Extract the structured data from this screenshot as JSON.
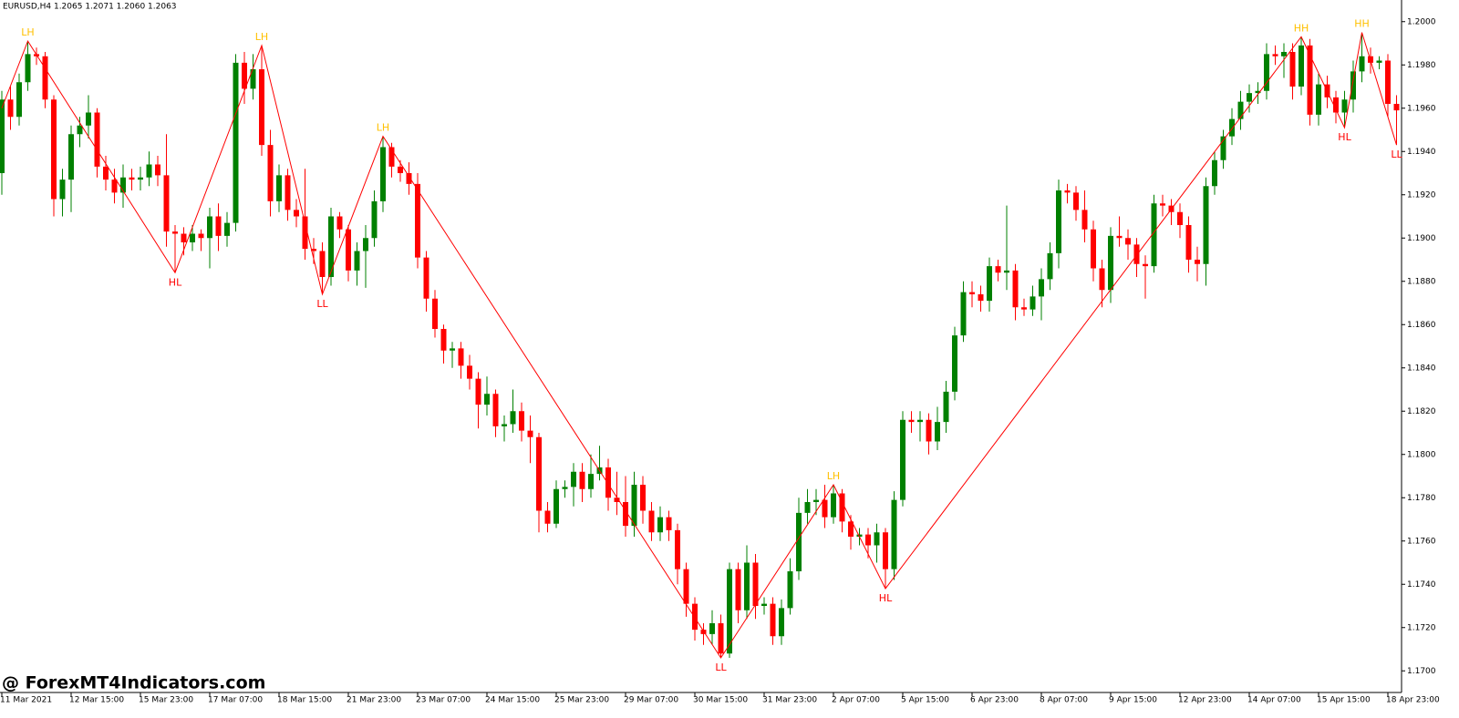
{
  "chart_data": {
    "type": "candlestick",
    "title": "EURUSD,H4  1.2065 1.2071 1.2060 1.2063",
    "watermark": "@ ForexMT4Indicators.com",
    "up_color": "#008000",
    "down_color": "#ff0000",
    "zigzag_color": "#ff0000",
    "high_label_color": "#ffc000",
    "low_label_color": "#ff0000",
    "ylim": [
      1.169,
      1.201
    ],
    "yticks": [
      {
        "value": 1.17,
        "label": "1.1700"
      },
      {
        "value": 1.172,
        "label": "1.1720"
      },
      {
        "value": 1.174,
        "label": "1.1740"
      },
      {
        "value": 1.176,
        "label": "1.1760"
      },
      {
        "value": 1.178,
        "label": "1.1780"
      },
      {
        "value": 1.18,
        "label": "1.1800"
      },
      {
        "value": 1.182,
        "label": "1.1820"
      },
      {
        "value": 1.184,
        "label": "1.1840"
      },
      {
        "value": 1.186,
        "label": "1.1860"
      },
      {
        "value": 1.188,
        "label": "1.1880"
      },
      {
        "value": 1.19,
        "label": "1.1900"
      },
      {
        "value": 1.192,
        "label": "1.1920"
      },
      {
        "value": 1.194,
        "label": "1.1940"
      },
      {
        "value": 1.196,
        "label": "1.1960"
      },
      {
        "value": 1.198,
        "label": "1.1980"
      },
      {
        "value": 1.2,
        "label": "1.2000"
      }
    ],
    "xticks": [
      {
        "value": 0,
        "label": "11 Mar 2021"
      },
      {
        "value": 8,
        "label": "12 Mar 15:00"
      },
      {
        "value": 16,
        "label": "15 Mar 23:00"
      },
      {
        "value": 24,
        "label": "17 Mar 07:00"
      },
      {
        "value": 32,
        "label": "18 Mar 15:00"
      },
      {
        "value": 40,
        "label": "21 Mar 23:00"
      },
      {
        "value": 48,
        "label": "23 Mar 07:00"
      },
      {
        "value": 56,
        "label": "24 Mar 15:00"
      },
      {
        "value": 64,
        "label": "25 Mar 23:00"
      },
      {
        "value": 72,
        "label": "29 Mar 07:00"
      },
      {
        "value": 80,
        "label": "30 Mar 15:00"
      },
      {
        "value": 88,
        "label": "31 Mar 23:00"
      },
      {
        "value": 96,
        "label": "2 Apr 07:00"
      },
      {
        "value": 104,
        "label": "5 Apr 15:00"
      },
      {
        "value": 112,
        "label": "6 Apr 23:00"
      },
      {
        "value": 120,
        "label": "8 Apr 07:00"
      },
      {
        "value": 128,
        "label": "9 Apr 15:00"
      },
      {
        "value": 136,
        "label": "12 Apr 23:00"
      },
      {
        "value": 144,
        "label": "14 Apr 07:00"
      },
      {
        "value": 152,
        "label": "15 Apr 15:00"
      },
      {
        "value": 160,
        "label": "18 Apr 23:00"
      }
    ],
    "candles": [
      [
        1.193,
        1.1968,
        1.192,
        1.1964
      ],
      [
        1.1964,
        1.197,
        1.195,
        1.1956
      ],
      [
        1.1956,
        1.1976,
        1.1952,
        1.1972
      ],
      [
        1.1972,
        1.1991,
        1.1968,
        1.1985
      ],
      [
        1.1985,
        1.1988,
        1.198,
        1.1984
      ],
      [
        1.1984,
        1.1986,
        1.196,
        1.1964
      ],
      [
        1.1964,
        1.1966,
        1.191,
        1.1918
      ],
      [
        1.1918,
        1.1932,
        1.191,
        1.1927
      ],
      [
        1.1927,
        1.1952,
        1.1912,
        1.1948
      ],
      [
        1.1948,
        1.1956,
        1.1942,
        1.1952
      ],
      [
        1.1952,
        1.1966,
        1.1946,
        1.1958
      ],
      [
        1.1958,
        1.196,
        1.1928,
        1.1933
      ],
      [
        1.1933,
        1.1938,
        1.1922,
        1.1927
      ],
      [
        1.1927,
        1.1932,
        1.1916,
        1.1921
      ],
      [
        1.1921,
        1.1934,
        1.1914,
        1.1928
      ],
      [
        1.1928,
        1.1932,
        1.1922,
        1.1927
      ],
      [
        1.1927,
        1.1933,
        1.1922,
        1.1928
      ],
      [
        1.1928,
        1.194,
        1.1924,
        1.1934
      ],
      [
        1.1934,
        1.1938,
        1.1924,
        1.1929
      ],
      [
        1.1929,
        1.1948,
        1.1896,
        1.1903
      ],
      [
        1.1903,
        1.1906,
        1.1884,
        1.1902
      ],
      [
        1.1902,
        1.1905,
        1.1892,
        1.1898
      ],
      [
        1.1898,
        1.1906,
        1.1894,
        1.1902
      ],
      [
        1.1902,
        1.1904,
        1.1894,
        1.19
      ],
      [
        1.19,
        1.1914,
        1.1886,
        1.191
      ],
      [
        1.191,
        1.1916,
        1.1894,
        1.1901
      ],
      [
        1.1901,
        1.1912,
        1.1896,
        1.1907
      ],
      [
        1.1907,
        1.1985,
        1.1903,
        1.1981
      ],
      [
        1.1981,
        1.1986,
        1.1962,
        1.1969
      ],
      [
        1.1969,
        1.1985,
        1.1964,
        1.1978
      ],
      [
        1.1978,
        1.1989,
        1.1938,
        1.1943
      ],
      [
        1.1943,
        1.195,
        1.191,
        1.1917
      ],
      [
        1.1917,
        1.1934,
        1.1912,
        1.1929
      ],
      [
        1.1929,
        1.1932,
        1.1908,
        1.1913
      ],
      [
        1.1913,
        1.1918,
        1.1905,
        1.191
      ],
      [
        1.191,
        1.1932,
        1.189,
        1.1895
      ],
      [
        1.1895,
        1.19,
        1.1888,
        1.1894
      ],
      [
        1.1894,
        1.1898,
        1.1874,
        1.1882
      ],
      [
        1.1882,
        1.1914,
        1.1878,
        1.191
      ],
      [
        1.191,
        1.1912,
        1.19,
        1.1904
      ],
      [
        1.1904,
        1.1906,
        1.188,
        1.1885
      ],
      [
        1.1885,
        1.1898,
        1.1878,
        1.1894
      ],
      [
        1.1894,
        1.1906,
        1.1877,
        1.19
      ],
      [
        1.19,
        1.1922,
        1.1896,
        1.1917
      ],
      [
        1.1917,
        1.1947,
        1.1912,
        1.1942
      ],
      [
        1.1942,
        1.1944,
        1.1928,
        1.1933
      ],
      [
        1.1933,
        1.1936,
        1.1926,
        1.193
      ],
      [
        1.193,
        1.1935,
        1.192,
        1.1925
      ],
      [
        1.1925,
        1.193,
        1.1886,
        1.1891
      ],
      [
        1.1891,
        1.1894,
        1.1866,
        1.1872
      ],
      [
        1.1872,
        1.1876,
        1.1854,
        1.1858
      ],
      [
        1.1858,
        1.186,
        1.1842,
        1.1848
      ],
      [
        1.1848,
        1.1852,
        1.184,
        1.1849
      ],
      [
        1.1849,
        1.1852,
        1.1835,
        1.1841
      ],
      [
        1.1841,
        1.1846,
        1.183,
        1.1835
      ],
      [
        1.1835,
        1.1838,
        1.1812,
        1.1823
      ],
      [
        1.1823,
        1.1836,
        1.1818,
        1.1828
      ],
      [
        1.1828,
        1.183,
        1.1808,
        1.1813
      ],
      [
        1.1813,
        1.1818,
        1.1806,
        1.1814
      ],
      [
        1.1814,
        1.183,
        1.181,
        1.182
      ],
      [
        1.182,
        1.1824,
        1.1806,
        1.1811
      ],
      [
        1.1811,
        1.1818,
        1.1796,
        1.1808
      ],
      [
        1.1808,
        1.181,
        1.1764,
        1.1774
      ],
      [
        1.1774,
        1.1778,
        1.1764,
        1.1768
      ],
      [
        1.1768,
        1.1788,
        1.1766,
        1.1784
      ],
      [
        1.1784,
        1.1788,
        1.178,
        1.1785
      ],
      [
        1.1785,
        1.1796,
        1.1776,
        1.1792
      ],
      [
        1.1792,
        1.1796,
        1.1778,
        1.1784
      ],
      [
        1.1784,
        1.18,
        1.178,
        1.1791
      ],
      [
        1.1791,
        1.1804,
        1.1788,
        1.1794
      ],
      [
        1.1794,
        1.1798,
        1.1774,
        1.178
      ],
      [
        1.178,
        1.1792,
        1.1772,
        1.1778
      ],
      [
        1.1778,
        1.179,
        1.1762,
        1.1767
      ],
      [
        1.1767,
        1.1792,
        1.1762,
        1.1786
      ],
      [
        1.1786,
        1.179,
        1.1768,
        1.1774
      ],
      [
        1.1774,
        1.1778,
        1.176,
        1.1764
      ],
      [
        1.1764,
        1.1776,
        1.176,
        1.1771
      ],
      [
        1.1771,
        1.1774,
        1.176,
        1.1765
      ],
      [
        1.1765,
        1.1768,
        1.174,
        1.1747
      ],
      [
        1.1747,
        1.175,
        1.1725,
        1.1731
      ],
      [
        1.1731,
        1.1734,
        1.1714,
        1.1719
      ],
      [
        1.1719,
        1.1722,
        1.1712,
        1.1717
      ],
      [
        1.1717,
        1.1728,
        1.1712,
        1.1722
      ],
      [
        1.1722,
        1.1726,
        1.1706,
        1.1708
      ],
      [
        1.1708,
        1.175,
        1.1706,
        1.1747
      ],
      [
        1.1747,
        1.175,
        1.1722,
        1.1728
      ],
      [
        1.1728,
        1.1758,
        1.1724,
        1.175
      ],
      [
        1.175,
        1.1754,
        1.1724,
        1.173
      ],
      [
        1.173,
        1.1734,
        1.1726,
        1.1731
      ],
      [
        1.1731,
        1.1734,
        1.1712,
        1.1716
      ],
      [
        1.1716,
        1.1733,
        1.1712,
        1.1729
      ],
      [
        1.1729,
        1.1752,
        1.1726,
        1.1746
      ],
      [
        1.1746,
        1.178,
        1.1742,
        1.1773
      ],
      [
        1.1773,
        1.1784,
        1.1768,
        1.1778
      ],
      [
        1.1778,
        1.1784,
        1.1772,
        1.1779
      ],
      [
        1.1779,
        1.1786,
        1.1766,
        1.1771
      ],
      [
        1.1771,
        1.1786,
        1.1768,
        1.1782
      ],
      [
        1.1782,
        1.1784,
        1.1764,
        1.1769
      ],
      [
        1.1769,
        1.1772,
        1.1756,
        1.1762
      ],
      [
        1.1762,
        1.1766,
        1.1758,
        1.1763
      ],
      [
        1.1763,
        1.1766,
        1.1752,
        1.1758
      ],
      [
        1.1758,
        1.1768,
        1.175,
        1.1764
      ],
      [
        1.1764,
        1.1766,
        1.1738,
        1.1747
      ],
      [
        1.1747,
        1.1783,
        1.1742,
        1.1779
      ],
      [
        1.1779,
        1.182,
        1.1776,
        1.1816
      ],
      [
        1.1816,
        1.182,
        1.181,
        1.1815
      ],
      [
        1.1815,
        1.182,
        1.1806,
        1.1816
      ],
      [
        1.1816,
        1.1819,
        1.18,
        1.1806
      ],
      [
        1.1806,
        1.1822,
        1.1802,
        1.1815
      ],
      [
        1.1815,
        1.1834,
        1.181,
        1.1829
      ],
      [
        1.1829,
        1.1859,
        1.1825,
        1.1855
      ],
      [
        1.1855,
        1.188,
        1.1852,
        1.1875
      ],
      [
        1.1875,
        1.188,
        1.1868,
        1.1874
      ],
      [
        1.1874,
        1.1878,
        1.1866,
        1.1871
      ],
      [
        1.1871,
        1.1891,
        1.1866,
        1.1887
      ],
      [
        1.1887,
        1.189,
        1.188,
        1.1884
      ],
      [
        1.1884,
        1.1915,
        1.1876,
        1.1885
      ],
      [
        1.1885,
        1.1888,
        1.1862,
        1.1868
      ],
      [
        1.1868,
        1.1872,
        1.1864,
        1.1867
      ],
      [
        1.1867,
        1.1878,
        1.1864,
        1.1873
      ],
      [
        1.1873,
        1.1886,
        1.1862,
        1.1881
      ],
      [
        1.1881,
        1.1898,
        1.1876,
        1.1893
      ],
      [
        1.1893,
        1.1927,
        1.1886,
        1.1922
      ],
      [
        1.1922,
        1.1925,
        1.1916,
        1.1921
      ],
      [
        1.1921,
        1.1924,
        1.1908,
        1.1913
      ],
      [
        1.1913,
        1.1922,
        1.1898,
        1.1904
      ],
      [
        1.1904,
        1.1908,
        1.188,
        1.1886
      ],
      [
        1.1886,
        1.189,
        1.1868,
        1.1876
      ],
      [
        1.1876,
        1.1905,
        1.187,
        1.1901
      ],
      [
        1.1901,
        1.191,
        1.1896,
        1.19
      ],
      [
        1.19,
        1.1904,
        1.189,
        1.1897
      ],
      [
        1.1897,
        1.19,
        1.1882,
        1.1888
      ],
      [
        1.1888,
        1.1892,
        1.1872,
        1.1887
      ],
      [
        1.1887,
        1.192,
        1.1884,
        1.1916
      ],
      [
        1.1916,
        1.192,
        1.191,
        1.1915
      ],
      [
        1.1915,
        1.1918,
        1.1906,
        1.1912
      ],
      [
        1.1912,
        1.1916,
        1.19,
        1.1906
      ],
      [
        1.1906,
        1.191,
        1.1884,
        1.189
      ],
      [
        1.189,
        1.1896,
        1.188,
        1.1888
      ],
      [
        1.1888,
        1.1928,
        1.1878,
        1.1924
      ],
      [
        1.1924,
        1.194,
        1.192,
        1.1936
      ],
      [
        1.1936,
        1.195,
        1.1932,
        1.1947
      ],
      [
        1.1947,
        1.196,
        1.1943,
        1.1955
      ],
      [
        1.1955,
        1.1968,
        1.195,
        1.1963
      ],
      [
        1.1963,
        1.1971,
        1.1958,
        1.1967
      ],
      [
        1.1967,
        1.1972,
        1.1962,
        1.1968
      ],
      [
        1.1968,
        1.199,
        1.1964,
        1.1985
      ],
      [
        1.1985,
        1.1989,
        1.198,
        1.1984
      ],
      [
        1.1984,
        1.199,
        1.1974,
        1.1986
      ],
      [
        1.1986,
        1.199,
        1.1964,
        1.197
      ],
      [
        1.197,
        1.1993,
        1.1966,
        1.1989
      ],
      [
        1.1989,
        1.1992,
        1.1952,
        1.1957
      ],
      [
        1.1957,
        1.1976,
        1.1952,
        1.1971
      ],
      [
        1.1971,
        1.1975,
        1.196,
        1.1965
      ],
      [
        1.1965,
        1.1968,
        1.1953,
        1.1958
      ],
      [
        1.1958,
        1.1968,
        1.1951,
        1.1964
      ],
      [
        1.1964,
        1.1982,
        1.1958,
        1.1977
      ],
      [
        1.1977,
        1.1995,
        1.1972,
        1.1984
      ],
      [
        1.1984,
        1.1988,
        1.1976,
        1.1981
      ],
      [
        1.1981,
        1.1984,
        1.1978,
        1.1982
      ],
      [
        1.1982,
        1.1985,
        1.1956,
        1.1962
      ],
      [
        1.1962,
        1.1966,
        1.1943,
        1.1959
      ]
    ],
    "zigzag": [
      {
        "index": 0,
        "value": 1.196,
        "label": null
      },
      {
        "index": 3,
        "value": 1.1991,
        "label": "LH"
      },
      {
        "index": 20,
        "value": 1.1884,
        "label": "HL"
      },
      {
        "index": 30,
        "value": 1.1989,
        "label": "LH"
      },
      {
        "index": 37,
        "value": 1.1874,
        "label": "LL"
      },
      {
        "index": 44,
        "value": 1.1947,
        "label": "LH"
      },
      {
        "index": 83,
        "value": 1.1706,
        "label": "LL"
      },
      {
        "index": 96,
        "value": 1.1786,
        "label": "LH"
      },
      {
        "index": 102,
        "value": 1.1738,
        "label": "HL"
      },
      {
        "index": 150,
        "value": 1.1993,
        "label": "HH"
      },
      {
        "index": 155,
        "value": 1.1951,
        "label": "HL"
      },
      {
        "index": 157,
        "value": 1.1995,
        "label": "HH"
      },
      {
        "index": 161,
        "value": 1.1943,
        "label": "LL"
      }
    ]
  }
}
